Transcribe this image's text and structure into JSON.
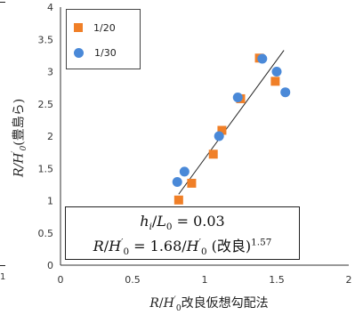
{
  "chart_data": {
    "type": "scatter",
    "xlim": [
      0,
      2
    ],
    "ylim": [
      0,
      4
    ],
    "x_ticks": [
      0,
      0.5,
      1,
      1.5,
      2
    ],
    "y_ticks": [
      0,
      0.5,
      1,
      1.5,
      2,
      2.5,
      3,
      3.5,
      4
    ],
    "x_tick_labels": [
      "0",
      "0.5",
      "1",
      "1.5",
      "2"
    ],
    "y_tick_labels": [
      "0",
      "0.5",
      "1",
      "1.5",
      "2",
      "2.5",
      "3",
      "3.5",
      "4"
    ],
    "grid": false,
    "legend_position": "top-left",
    "series": [
      {
        "name": "1/20",
        "marker": "square",
        "color": "#F07F27",
        "points": [
          [
            0.82,
            1.01
          ],
          [
            0.91,
            1.27
          ],
          [
            1.06,
            1.72
          ],
          [
            1.12,
            2.09
          ],
          [
            1.25,
            2.58
          ],
          [
            1.38,
            3.21
          ],
          [
            1.49,
            2.85
          ]
        ]
      },
      {
        "name": "1/30",
        "marker": "circle",
        "color": "#4A89D8",
        "points": [
          [
            0.81,
            1.29
          ],
          [
            0.86,
            1.45
          ],
          [
            1.1,
            2.0
          ],
          [
            1.23,
            2.6
          ],
          [
            1.4,
            3.2
          ],
          [
            1.5,
            3.0
          ],
          [
            1.56,
            2.68
          ]
        ]
      }
    ],
    "fit_line": {
      "points": [
        [
          0.82,
          1.1
        ],
        [
          1.55,
          3.33
        ]
      ],
      "color": "#222222"
    }
  },
  "labels": {
    "ylabel": {
      "symbol_r": "R",
      "symbol_h": "H",
      "sub": "0",
      "prime": "′",
      "suffix": "(豊島ら)"
    },
    "xlabel": {
      "symbol_r": "R",
      "symbol_h": "H",
      "sub": "0",
      "prime": "′",
      "suffix": "改良仮想勾配法"
    },
    "legend": [
      "1/20",
      "1/30"
    ],
    "annotation": {
      "line1_h": "h",
      "line1_i": "i",
      "line1_l": "L",
      "line1_sub0": "0",
      "line1_eq": " = 0.03",
      "line2_r": "R",
      "line2_h": "H",
      "line2_sub0": "0",
      "line2_prime": "′",
      "line2_eq": " = 1.68/",
      "line2_paren": " (改良)",
      "line2_exp": "1.57"
    },
    "edge": {
      "glyph": "1"
    }
  }
}
